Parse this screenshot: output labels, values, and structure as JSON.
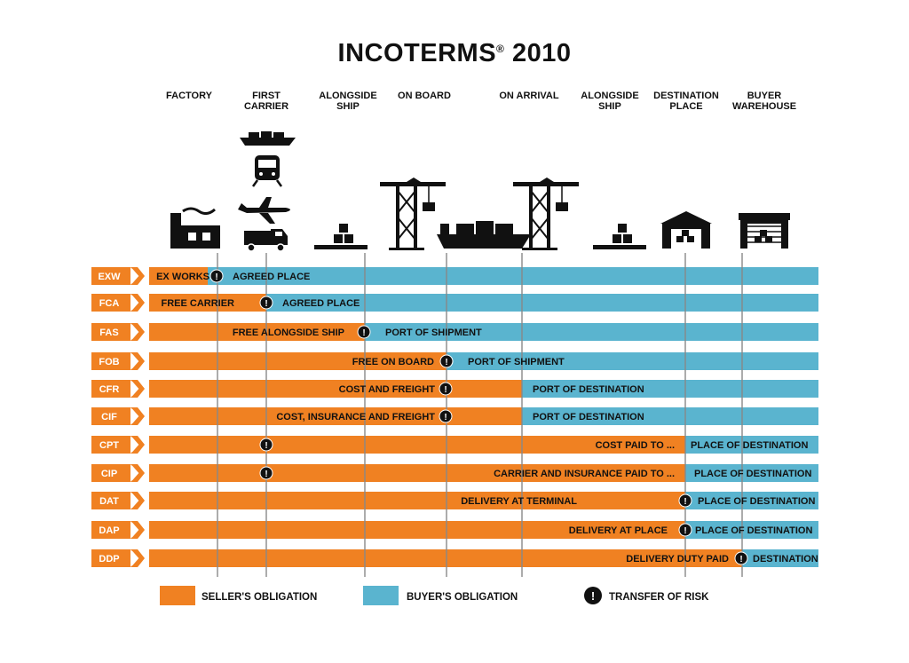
{
  "title": {
    "main": "INCOTERMS",
    "mark": "®",
    "year": "2010"
  },
  "columns": [
    [
      "FACTORY"
    ],
    [
      "FIRST",
      "CARRIER"
    ],
    [
      "ALONGSIDE",
      "SHIP"
    ],
    [
      "ON BOARD"
    ],
    [
      "ON ARRIVAL"
    ],
    [
      "ALONGSIDE",
      "SHIP"
    ],
    [
      "DESTINATION",
      "PLACE"
    ],
    [
      "BUYER",
      "WAREHOUSE"
    ]
  ],
  "icons": [
    "ship-icon",
    "train-icon",
    "airplane-icon",
    "truck-icon",
    "factory-icon",
    "pallet-icon",
    "crane-icon",
    "container-ship-icon",
    "warehouse-icon"
  ],
  "terms": [
    {
      "code": "EXW",
      "seller_label": "EX WORKS",
      "buyer_label": "AGREED PLACE"
    },
    {
      "code": "FCA",
      "seller_label": "FREE CARRIER",
      "buyer_label": "AGREED PLACE"
    },
    {
      "code": "FAS",
      "seller_label": "FREE ALONGSIDE SHIP",
      "buyer_label": "PORT OF SHIPMENT"
    },
    {
      "code": "FOB",
      "seller_label": "FREE ON BOARD",
      "buyer_label": "PORT OF SHIPMENT"
    },
    {
      "code": "CFR",
      "seller_label": "COST AND FREIGHT",
      "buyer_label": "PORT OF DESTINATION"
    },
    {
      "code": "CIF",
      "seller_label": "COST, INSURANCE AND FREIGHT",
      "buyer_label": "PORT OF DESTINATION"
    },
    {
      "code": "CPT",
      "seller_label": "COST PAID TO ...",
      "buyer_label": "PLACE OF DESTINATION"
    },
    {
      "code": "CIP",
      "seller_label": "CARRIER AND INSURANCE PAID TO ...",
      "buyer_label": "PLACE OF DESTINATION"
    },
    {
      "code": "DAT",
      "seller_label": "DELIVERY AT TERMINAL",
      "buyer_label": "PLACE OF DESTINATION"
    },
    {
      "code": "DAP",
      "seller_label": "DELIVERY AT PLACE",
      "buyer_label": "PLACE OF DESTINATION"
    },
    {
      "code": "DDP",
      "seller_label": "DELIVERY DUTY PAID",
      "buyer_label": "DESTINATION"
    }
  ],
  "legend": {
    "seller": "SELLER'S OBLIGATION",
    "buyer": "BUYER'S OBLIGATION",
    "risk": "TRANSFER OF RISK",
    "risk_glyph": "!"
  },
  "colors": {
    "seller": "#f08122",
    "buyer": "#5ab4cf",
    "risk": "#111111",
    "divider": "#888888",
    "icon": "#111111"
  }
}
